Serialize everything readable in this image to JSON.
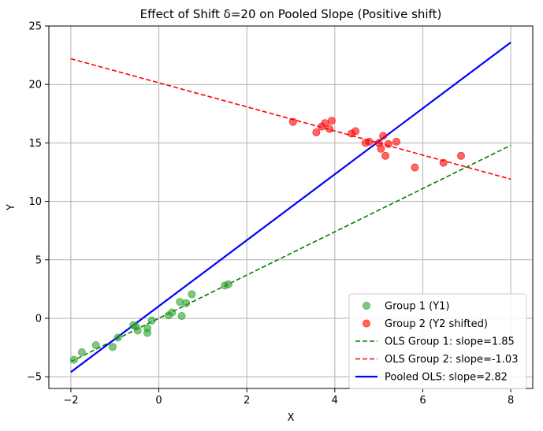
{
  "chart_data": {
    "type": "scatter",
    "title": "Effect of Shift δ=20 on Pooled Slope (Positive shift)",
    "xlabel": "X",
    "ylabel": "Y",
    "xlim": [
      -2.5,
      8.5
    ],
    "ylim": [
      -6.0,
      25.0
    ],
    "xticks": [
      -2,
      0,
      2,
      4,
      6,
      8
    ],
    "yticks": [
      -5,
      0,
      5,
      10,
      15,
      20,
      25
    ],
    "grid": true,
    "legend_position": "bottom-right",
    "series": [
      {
        "name": "Group 1 (Y1)",
        "kind": "scatter",
        "color": "#2ca02c",
        "x": [
          -1.93,
          -1.75,
          -1.43,
          -1.05,
          -0.93,
          -0.58,
          -0.52,
          -0.48,
          -0.26,
          -0.26,
          -0.16,
          0.22,
          0.3,
          0.48,
          0.52,
          0.62,
          0.75,
          1.5,
          1.58
        ],
        "y": [
          -3.55,
          -2.9,
          -2.3,
          -2.45,
          -1.65,
          -0.6,
          -0.7,
          -1.05,
          -0.85,
          -1.25,
          -0.2,
          0.25,
          0.5,
          1.4,
          0.2,
          1.3,
          2.05,
          2.8,
          2.9
        ]
      },
      {
        "name": "Group 2 (Y2 shifted)",
        "kind": "scatter",
        "color": "#ff0000",
        "x": [
          3.05,
          3.58,
          3.7,
          3.78,
          3.88,
          3.93,
          4.38,
          4.47,
          4.7,
          4.78,
          5.0,
          5.05,
          5.1,
          5.15,
          5.22,
          5.4,
          5.82,
          6.47,
          6.87
        ],
        "y": [
          16.8,
          15.9,
          16.4,
          16.7,
          16.2,
          16.9,
          15.8,
          16.0,
          15.0,
          15.1,
          15.0,
          14.5,
          15.6,
          13.9,
          14.9,
          15.1,
          12.9,
          13.3,
          13.9
        ]
      },
      {
        "name": "OLS Group 1: slope=1.85",
        "kind": "line",
        "style": "dashed",
        "color": "#008000",
        "x": [
          -2,
          8
        ],
        "y": [
          -3.7,
          14.8
        ]
      },
      {
        "name": "OLS Group 2: slope=-1.03",
        "kind": "line",
        "style": "dashed",
        "color": "#ff0000",
        "x": [
          -2,
          8
        ],
        "y": [
          22.2,
          11.9
        ]
      },
      {
        "name": "Pooled OLS: slope=2.82",
        "kind": "line",
        "style": "solid",
        "color": "#0000ff",
        "x": [
          -2,
          8
        ],
        "y": [
          -4.6,
          23.6
        ]
      }
    ]
  }
}
